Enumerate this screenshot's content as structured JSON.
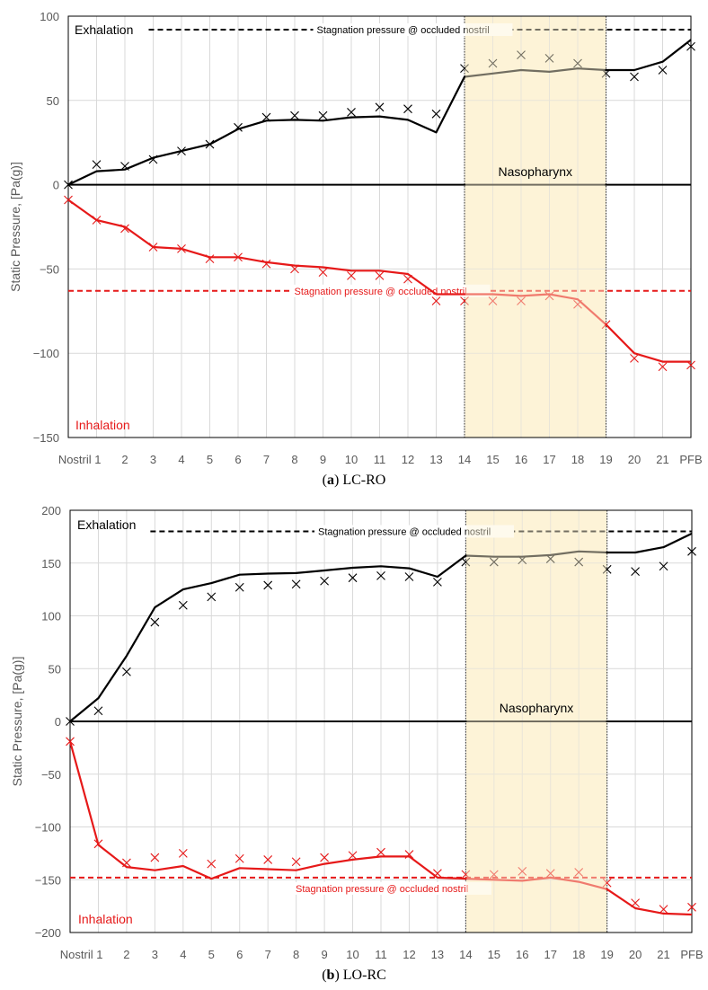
{
  "colors": {
    "exhalation": "#000000",
    "inhalation": "#e61919",
    "nasopharynx_fill": "#fdf3d7",
    "grid": "#d9d9d9",
    "axis_text": "#595959"
  },
  "chart_data": [
    {
      "id": "a",
      "type": "line",
      "caption_letter": "a",
      "caption_text": "LC-RO",
      "caption_open": "(",
      "caption_close": ") ",
      "ylabel": "Static Pressure, [Pa(g)]",
      "ylim": [
        -150,
        100
      ],
      "yticks": [
        -150,
        -100,
        -50,
        0,
        50,
        100
      ],
      "ytick_labels": [
        "−150",
        "−100",
        "−50",
        "0",
        "50",
        "100"
      ],
      "categories": [
        "Nostril 1",
        "2",
        "3",
        "4",
        "5",
        "6",
        "7",
        "8",
        "9",
        "10",
        "11",
        "12",
        "13",
        "14",
        "15",
        "16",
        "17",
        "18",
        "19",
        "20",
        "21",
        "PFB"
      ],
      "grid": true,
      "nasopharynx": {
        "label": "Nasopharynx",
        "from": "14",
        "to": "19"
      },
      "annotations": {
        "exhalation": "Exhalation",
        "inhalation": "Inhalation"
      },
      "stagnation": [
        {
          "series": "exhalation",
          "label": "Stagnation pressure @ occluded nostril",
          "value": 92,
          "from_index": 3,
          "to_index": 22
        },
        {
          "series": "inhalation",
          "label": "Stagnation pressure @ occluded nostril",
          "value": -63,
          "from_index": 0,
          "to_index": 22
        }
      ],
      "series": [
        {
          "key": "exhalation",
          "kind": "line",
          "x": [
            0,
            1,
            2,
            3,
            4,
            5,
            6,
            7,
            8,
            9,
            10,
            11,
            12,
            13,
            14,
            15,
            16,
            17,
            18,
            19,
            20,
            21,
            22
          ],
          "values": [
            0,
            8,
            9,
            16,
            20,
            24,
            33,
            38,
            38.5,
            38,
            40,
            40.5,
            38.5,
            31,
            64,
            66,
            68,
            67,
            69,
            68,
            68,
            73,
            86
          ]
        },
        {
          "key": "exhalation",
          "kind": "markers",
          "x": [
            0,
            1,
            2,
            3,
            4,
            5,
            6,
            7,
            8,
            9,
            10,
            11,
            12,
            13,
            14,
            15,
            16,
            17,
            18,
            19,
            20,
            21,
            22
          ],
          "values": [
            0,
            12,
            11,
            15,
            20,
            24,
            34,
            40,
            41,
            41,
            43,
            46,
            45,
            42,
            69,
            72,
            77,
            75,
            72,
            66,
            64,
            68,
            82
          ]
        },
        {
          "key": "inhalation",
          "kind": "line",
          "x": [
            0,
            1,
            2,
            3,
            4,
            5,
            6,
            7,
            8,
            9,
            10,
            11,
            12,
            13,
            14,
            15,
            16,
            17,
            18,
            19,
            20,
            21,
            22
          ],
          "values": [
            -9,
            -21,
            -25,
            -37,
            -38,
            -43,
            -43,
            -46,
            -48,
            -49,
            -51,
            -51,
            -53,
            -65,
            -65,
            -65,
            -66,
            -65,
            -68,
            -83,
            -100,
            -105,
            -105
          ]
        },
        {
          "key": "inhalation",
          "kind": "markers",
          "x": [
            0,
            1,
            2,
            3,
            4,
            5,
            6,
            7,
            8,
            9,
            10,
            11,
            12,
            13,
            14,
            15,
            16,
            17,
            18,
            19,
            20,
            21,
            22
          ],
          "values": [
            -9,
            -21,
            -26,
            -37,
            -38,
            -44,
            -43,
            -47,
            -50,
            -52,
            -54,
            -54,
            -56,
            -69,
            -69,
            -69,
            -69,
            -66,
            -71,
            -83,
            -103,
            -108,
            -107
          ]
        }
      ]
    },
    {
      "id": "b",
      "type": "line",
      "caption_letter": "b",
      "caption_text": "LO-RC",
      "caption_open": "(",
      "caption_close": ") ",
      "ylabel": "Static Pressure, [Pa(g)]",
      "ylim": [
        -200,
        200
      ],
      "yticks": [
        -200,
        -150,
        -100,
        -50,
        0,
        50,
        100,
        150,
        200
      ],
      "ytick_labels": [
        "−200",
        "−150",
        "−100",
        "−50",
        "0",
        "50",
        "100",
        "150",
        "200"
      ],
      "categories": [
        "Nostril 1",
        "2",
        "3",
        "4",
        "5",
        "6",
        "7",
        "8",
        "9",
        "10",
        "11",
        "12",
        "13",
        "14",
        "15",
        "16",
        "17",
        "18",
        "19",
        "20",
        "21",
        "PFB"
      ],
      "grid": true,
      "nasopharynx": {
        "label": "Nasopharynx",
        "from": "14",
        "to": "19"
      },
      "annotations": {
        "exhalation": "Exhalation",
        "inhalation": "Inhalation"
      },
      "stagnation": [
        {
          "series": "exhalation",
          "label": "Stagnation pressure @ occluded nostril",
          "value": 180,
          "from_index": 3,
          "to_index": 22
        },
        {
          "series": "inhalation",
          "label": "Stagnation pressure @ occluded nostril",
          "value": -148,
          "from_index": 0,
          "to_index": 22
        }
      ],
      "series": [
        {
          "key": "exhalation",
          "kind": "line",
          "x": [
            0,
            1,
            2,
            3,
            4,
            5,
            6,
            7,
            8,
            9,
            10,
            11,
            12,
            13,
            14,
            15,
            16,
            17,
            18,
            19,
            20,
            21,
            22
          ],
          "values": [
            0,
            22,
            62,
            108,
            125,
            131,
            139,
            140,
            140.5,
            143,
            145.5,
            147,
            145,
            137,
            157,
            156,
            156,
            157.5,
            161,
            160,
            160,
            165,
            178
          ]
        },
        {
          "key": "exhalation",
          "kind": "markers",
          "x": [
            0,
            1,
            2,
            3,
            4,
            5,
            6,
            7,
            8,
            9,
            10,
            11,
            12,
            13,
            14,
            15,
            16,
            17,
            18,
            19,
            20,
            21,
            22
          ],
          "values": [
            0,
            10,
            47,
            94,
            110,
            118,
            127,
            129,
            130,
            133,
            136,
            138,
            137,
            132,
            151,
            151,
            153,
            154,
            151,
            144,
            142,
            147,
            161
          ]
        },
        {
          "key": "inhalation",
          "kind": "line",
          "x": [
            0,
            1,
            2,
            3,
            4,
            5,
            6,
            7,
            8,
            9,
            10,
            11,
            12,
            13,
            14,
            15,
            16,
            17,
            18,
            19,
            20,
            21,
            22
          ],
          "values": [
            -19,
            -117,
            -138,
            -141,
            -137,
            -149,
            -139,
            -140,
            -141,
            -135,
            -131,
            -128,
            -128,
            -148,
            -149,
            -150,
            -151,
            -148,
            -152,
            -159,
            -177,
            -182,
            -183
          ]
        },
        {
          "key": "inhalation",
          "kind": "markers",
          "x": [
            0,
            1,
            2,
            3,
            4,
            5,
            6,
            7,
            8,
            9,
            10,
            11,
            12,
            13,
            14,
            15,
            16,
            17,
            18,
            19,
            20,
            21,
            22
          ],
          "values": [
            -19,
            -116,
            -134,
            -129,
            -125,
            -135,
            -130,
            -131,
            -133,
            -129,
            -127,
            -124,
            -126,
            -144,
            -145,
            -145,
            -142,
            -144,
            -143,
            -153,
            -172,
            -178,
            -176
          ]
        }
      ]
    }
  ]
}
